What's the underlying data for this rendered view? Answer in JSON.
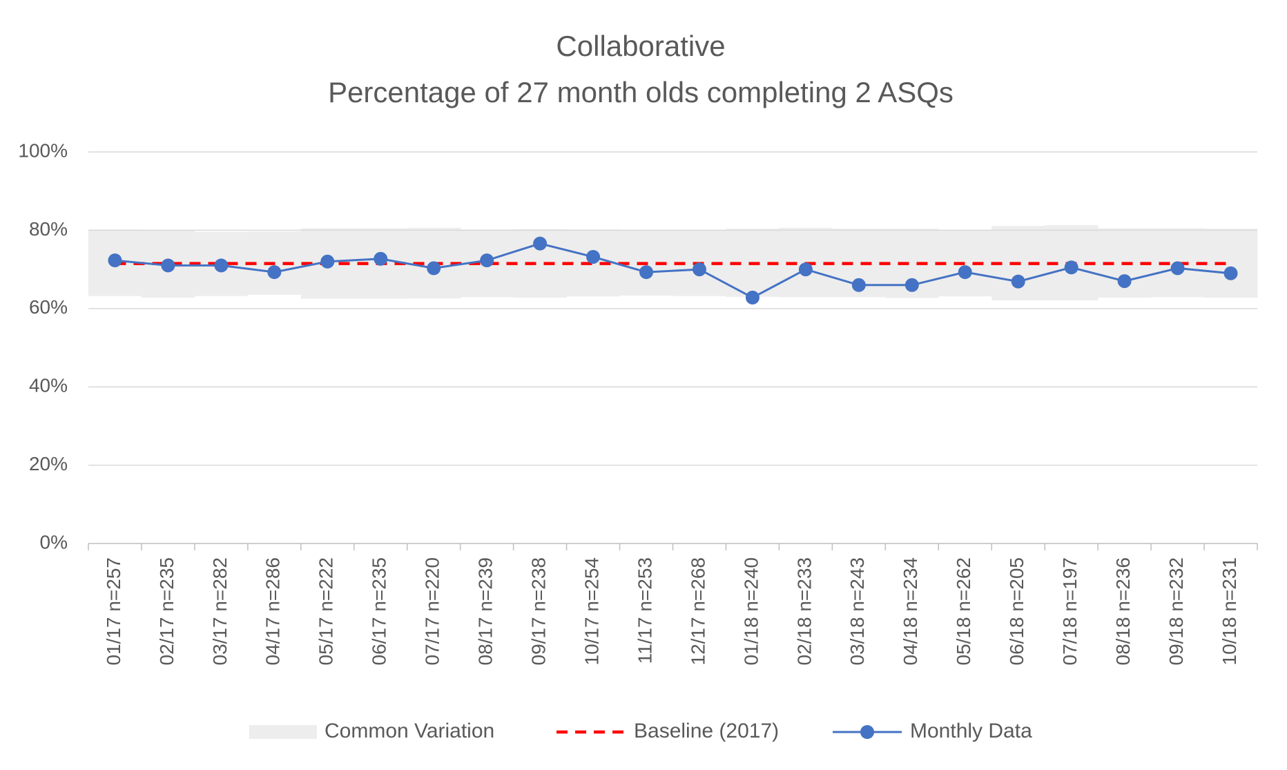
{
  "chart_data": {
    "type": "line",
    "title": "Collaborative",
    "subtitle": "Percentage of 27 month olds completing 2 ASQs",
    "categories": [
      "01/17 n=257",
      "02/17 n=235",
      "03/17 n=282",
      "04/17 n=286",
      "05/17 n=222",
      "06/17 n=235",
      "07/17 n=220",
      "08/17 n=239",
      "09/17 n=238",
      "10/17 n=254",
      "11/17 n=253",
      "12/17 n=268",
      "01/18 n=240",
      "02/18 n=233",
      "03/18 n=243",
      "04/18 n=234",
      "05/18 n=262",
      "06/18 n=205",
      "07/18 n=197",
      "08/18 n=236",
      "09/18 n=232",
      "10/18 n=231"
    ],
    "band": {
      "name": "Common Variation",
      "color": "#ededed",
      "lower": [
        63.2,
        62.8,
        63.2,
        63.5,
        62.5,
        62.5,
        62.6,
        62.9,
        62.8,
        63.1,
        63.3,
        63.2,
        63.0,
        62.9,
        62.9,
        62.7,
        63.1,
        62.1,
        62.1,
        62.8,
        62.9,
        62.8
      ],
      "upper": [
        80.2,
        79.9,
        79.6,
        79.7,
        80.5,
        80.5,
        80.6,
        80.2,
        80.3,
        80.2,
        80.0,
        80.1,
        80.4,
        80.6,
        80.4,
        80.4,
        80.1,
        81.1,
        81.3,
        80.5,
        80.5,
        80.4
      ]
    },
    "series": [
      {
        "name": "Baseline (2017)",
        "color": "#ff0000",
        "dashed": true,
        "values": [
          71.5,
          71.5,
          71.5,
          71.5,
          71.5,
          71.5,
          71.5,
          71.5,
          71.5,
          71.5,
          71.5,
          71.5,
          71.5,
          71.5,
          71.5,
          71.5,
          71.5,
          71.5,
          71.5,
          71.5,
          71.5,
          71.5
        ]
      },
      {
        "name": "Monthly Data",
        "color": "#4472c4",
        "markers": true,
        "values": [
          72.3,
          71,
          71,
          69.3,
          72,
          72.7,
          70.3,
          72.3,
          76.6,
          73.2,
          69.3,
          70,
          62.8,
          70,
          66,
          66,
          69.3,
          66.9,
          70.5,
          67,
          70.3,
          69
        ]
      }
    ],
    "ylim": [
      0,
      100
    ],
    "yticks": [
      {
        "value": 0,
        "label": "0%"
      },
      {
        "value": 20,
        "label": "20%"
      },
      {
        "value": 40,
        "label": "40%"
      },
      {
        "value": 60,
        "label": "60%"
      },
      {
        "value": 80,
        "label": "80%"
      },
      {
        "value": 100,
        "label": "100%"
      }
    ],
    "grid": true,
    "legend": "bottom"
  }
}
